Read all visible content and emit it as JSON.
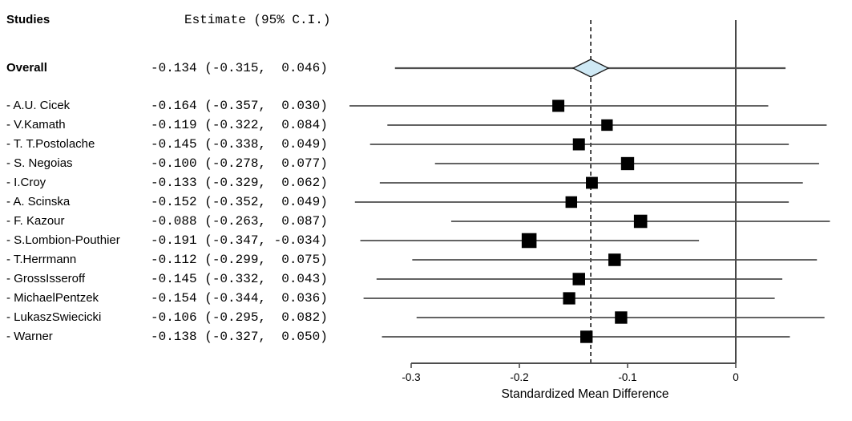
{
  "header": {
    "studies": "Studies",
    "estimate": "Estimate (95% C.I.)"
  },
  "colors": {
    "marker": "#000000",
    "ci_line": "#4d4d4d",
    "axis": "#4d4d4d",
    "zero_line": "#1a1a1a",
    "dashed_line": "#1a1a1a",
    "diamond_fill": "#cfe9f5",
    "diamond_stroke": "#1a1a1a",
    "text": "#000000"
  },
  "chart_data": {
    "type": "forest",
    "xlabel": "Standardized Mean Difference",
    "x_ticks": [
      -0.3,
      -0.2,
      -0.1,
      0
    ],
    "x_tick_labels": [
      "-0.3",
      "-0.2",
      "-0.1",
      "0"
    ],
    "xlim": [
      -0.3,
      0
    ],
    "reference_line": 0,
    "dashed_line_at": -0.134,
    "grid": false,
    "overall": {
      "label": "Overall",
      "estimate_text": "-0.134 (-0.315,  0.046)",
      "estimate": -0.134,
      "ci_lower": -0.315,
      "ci_upper": 0.046
    },
    "studies": [
      {
        "label": "- A.U. Cicek",
        "estimate_text": "-0.164 (-0.357,  0.030)",
        "estimate": -0.164,
        "ci_lower": -0.357,
        "ci_upper": 0.03
      },
      {
        "label": "- V.Kamath",
        "estimate_text": "-0.119 (-0.322,  0.084)",
        "estimate": -0.119,
        "ci_lower": -0.322,
        "ci_upper": 0.084
      },
      {
        "label": "- T. T.Postolache",
        "estimate_text": "-0.145 (-0.338,  0.049)",
        "estimate": -0.145,
        "ci_lower": -0.338,
        "ci_upper": 0.049
      },
      {
        "label": "- S. Negoias",
        "estimate_text": "-0.100 (-0.278,  0.077)",
        "estimate": -0.1,
        "ci_lower": -0.278,
        "ci_upper": 0.077
      },
      {
        "label": "- I.Croy",
        "estimate_text": "-0.133 (-0.329,  0.062)",
        "estimate": -0.133,
        "ci_lower": -0.329,
        "ci_upper": 0.062
      },
      {
        "label": "- A. Scinska",
        "estimate_text": "-0.152 (-0.352,  0.049)",
        "estimate": -0.152,
        "ci_lower": -0.352,
        "ci_upper": 0.049
      },
      {
        "label": "- F. Kazour",
        "estimate_text": "-0.088 (-0.263,  0.087)",
        "estimate": -0.088,
        "ci_lower": -0.263,
        "ci_upper": 0.087
      },
      {
        "label": "- S.Lombion-Pouthier",
        "estimate_text": "-0.191 (-0.347, -0.034)",
        "estimate": -0.191,
        "ci_lower": -0.347,
        "ci_upper": -0.034
      },
      {
        "label": "- T.Herrmann",
        "estimate_text": "-0.112 (-0.299,  0.075)",
        "estimate": -0.112,
        "ci_lower": -0.299,
        "ci_upper": 0.075
      },
      {
        "label": "- GrossIsseroff",
        "estimate_text": "-0.145 (-0.332,  0.043)",
        "estimate": -0.145,
        "ci_lower": -0.332,
        "ci_upper": 0.043
      },
      {
        "label": "- MichaelPentzek",
        "estimate_text": "-0.154 (-0.344,  0.036)",
        "estimate": -0.154,
        "ci_lower": -0.344,
        "ci_upper": 0.036
      },
      {
        "label": "- LukaszSwiecicki",
        "estimate_text": "-0.106 (-0.295,  0.082)",
        "estimate": -0.106,
        "ci_lower": -0.295,
        "ci_upper": 0.082
      },
      {
        "label": "- Warner",
        "estimate_text": "-0.138 (-0.327,  0.050)",
        "estimate": -0.138,
        "ci_lower": -0.327,
        "ci_upper": 0.05
      }
    ]
  }
}
